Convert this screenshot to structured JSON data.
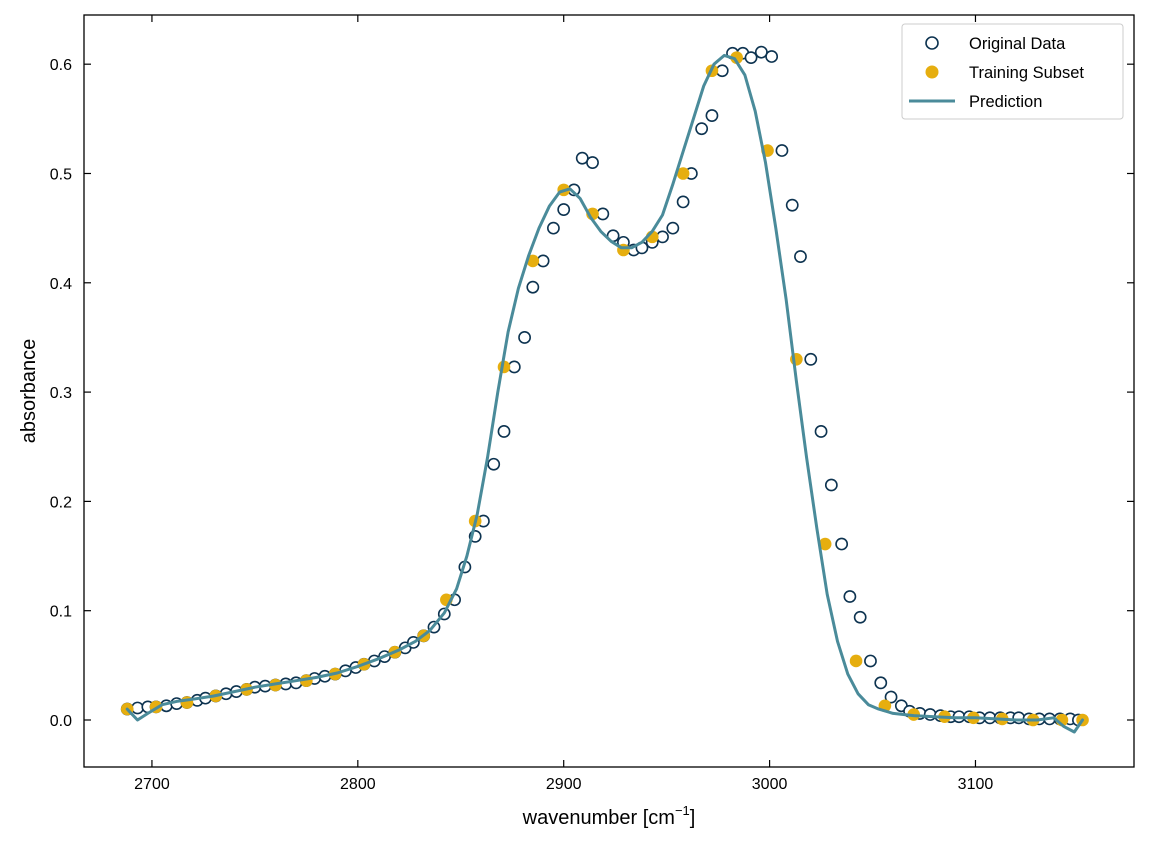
{
  "chart_data": {
    "type": "scatter",
    "title": "",
    "xlabel": "wavenumber [cm",
    "xlabel_sup": "−1",
    "xlabel_suffix": "]",
    "ylabel": "absorbance",
    "xlim": [
      2667,
      3177
    ],
    "ylim": [
      -0.043,
      0.645
    ],
    "xticks": [
      2700,
      2800,
      2900,
      3000,
      3100
    ],
    "xtick_labels": [
      "2700",
      "2800",
      "2900",
      "3000",
      "3100"
    ],
    "yticks": [
      0.0,
      0.1,
      0.2,
      0.3,
      0.4,
      0.5,
      0.6
    ],
    "ytick_labels": [
      "0.0",
      "0.1",
      "0.2",
      "0.3",
      "0.4",
      "0.5",
      "0.6"
    ],
    "grid": false,
    "legend_position": "top-right",
    "colors": {
      "original": "#0d3350",
      "training": "#e6ae0f",
      "prediction": "#4a8b9a"
    },
    "series": [
      {
        "name": "Original Data",
        "kind": "hollow-marker",
        "x": [
          2688,
          2693,
          2698,
          2702,
          2707,
          2712,
          2717,
          2722,
          2726,
          2731,
          2736,
          2741,
          2746,
          2750,
          2755,
          2760,
          2765,
          2770,
          2775,
          2779,
          2784,
          2789,
          2794,
          2799,
          2803,
          2808,
          2813,
          2818,
          2823,
          2827,
          2832,
          2837,
          2842,
          2847,
          2852,
          2857,
          2861,
          2866,
          2871,
          2876,
          2881,
          2885,
          2890,
          2895,
          2900,
          2905,
          2909,
          2914,
          2919,
          2924,
          2929,
          2934,
          2938,
          2943,
          2948,
          2953,
          2958,
          2962,
          2967,
          2972,
          2977,
          2982,
          2987,
          2991,
          2996,
          3001,
          3006,
          3011,
          3015,
          3020,
          3025,
          3030,
          3035,
          3039,
          3044,
          3049,
          3054,
          3059,
          3064,
          3068,
          3073,
          3078,
          3083,
          3088,
          3092,
          3097,
          3102,
          3107,
          3112,
          3117,
          3121,
          3126,
          3131,
          3136,
          3141,
          3146,
          3150
        ],
        "y": [
          0.01,
          0.011,
          0.012,
          0.012,
          0.013,
          0.015,
          0.016,
          0.018,
          0.02,
          0.022,
          0.024,
          0.026,
          0.028,
          0.03,
          0.031,
          0.032,
          0.033,
          0.034,
          0.036,
          0.038,
          0.04,
          0.042,
          0.045,
          0.048,
          0.051,
          0.054,
          0.058,
          0.062,
          0.066,
          0.071,
          0.077,
          0.085,
          0.097,
          0.11,
          0.14,
          0.168,
          0.182,
          0.234,
          0.264,
          0.323,
          0.35,
          0.396,
          0.42,
          0.45,
          0.467,
          0.485,
          0.514,
          0.51,
          0.463,
          0.443,
          0.437,
          0.43,
          0.432,
          0.437,
          0.442,
          0.45,
          0.474,
          0.5,
          0.541,
          0.553,
          0.594,
          0.61,
          0.61,
          0.606,
          0.611,
          0.607,
          0.521,
          0.471,
          0.424,
          0.33,
          0.264,
          0.215,
          0.161,
          0.113,
          0.094,
          0.054,
          0.034,
          0.021,
          0.013,
          0.008,
          0.006,
          0.005,
          0.004,
          0.003,
          0.003,
          0.003,
          0.002,
          0.002,
          0.002,
          0.002,
          0.002,
          0.001,
          0.001,
          0.001,
          0.001,
          0.001,
          0.0
        ]
      },
      {
        "name": "Training Subset",
        "kind": "filled-marker",
        "x": [
          2688,
          2702,
          2717,
          2731,
          2746,
          2760,
          2775,
          2789,
          2803,
          2818,
          2832,
          2843,
          2857,
          2871,
          2885,
          2900,
          2914,
          2929,
          2943,
          2958,
          2972,
          2984,
          2999,
          3013,
          3027,
          3042,
          3056,
          3070,
          3085,
          3099,
          3113,
          3128,
          3142,
          3152
        ],
        "y": [
          0.01,
          0.012,
          0.016,
          0.022,
          0.028,
          0.032,
          0.036,
          0.042,
          0.051,
          0.062,
          0.077,
          0.11,
          0.182,
          0.323,
          0.42,
          0.485,
          0.463,
          0.43,
          0.442,
          0.5,
          0.594,
          0.606,
          0.521,
          0.33,
          0.161,
          0.054,
          0.013,
          0.005,
          0.003,
          0.002,
          0.001,
          0.0,
          0.0,
          0.0
        ]
      },
      {
        "name": "Prediction",
        "kind": "line",
        "x": [
          2688,
          2693,
          2698,
          2705,
          2712,
          2720,
          2730,
          2740,
          2750,
          2760,
          2770,
          2780,
          2790,
          2800,
          2810,
          2820,
          2828,
          2835,
          2842,
          2848,
          2853,
          2858,
          2863,
          2868,
          2873,
          2878,
          2883,
          2888,
          2893,
          2898,
          2903,
          2908,
          2913,
          2918,
          2923,
          2928,
          2933,
          2938,
          2943,
          2948,
          2953,
          2958,
          2963,
          2968,
          2973,
          2978,
          2983,
          2988,
          2993,
          2998,
          3003,
          3008,
          3013,
          3018,
          3023,
          3028,
          3033,
          3038,
          3043,
          3048,
          3053,
          3060,
          3070,
          3080,
          3090,
          3100,
          3110,
          3120,
          3130,
          3138,
          3143,
          3148,
          3152
        ],
        "y": [
          0.01,
          0.0,
          0.006,
          0.014,
          0.017,
          0.019,
          0.022,
          0.026,
          0.03,
          0.033,
          0.036,
          0.039,
          0.043,
          0.049,
          0.056,
          0.064,
          0.072,
          0.082,
          0.098,
          0.12,
          0.15,
          0.188,
          0.24,
          0.3,
          0.355,
          0.395,
          0.425,
          0.45,
          0.47,
          0.483,
          0.486,
          0.477,
          0.46,
          0.447,
          0.438,
          0.432,
          0.432,
          0.437,
          0.447,
          0.462,
          0.49,
          0.52,
          0.55,
          0.58,
          0.6,
          0.608,
          0.605,
          0.59,
          0.557,
          0.51,
          0.45,
          0.385,
          0.31,
          0.24,
          0.175,
          0.115,
          0.072,
          0.042,
          0.024,
          0.014,
          0.01,
          0.006,
          0.004,
          0.003,
          0.002,
          0.002,
          0.001,
          0.0,
          0.0,
          0.002,
          -0.006,
          -0.011,
          0.0
        ]
      }
    ]
  }
}
